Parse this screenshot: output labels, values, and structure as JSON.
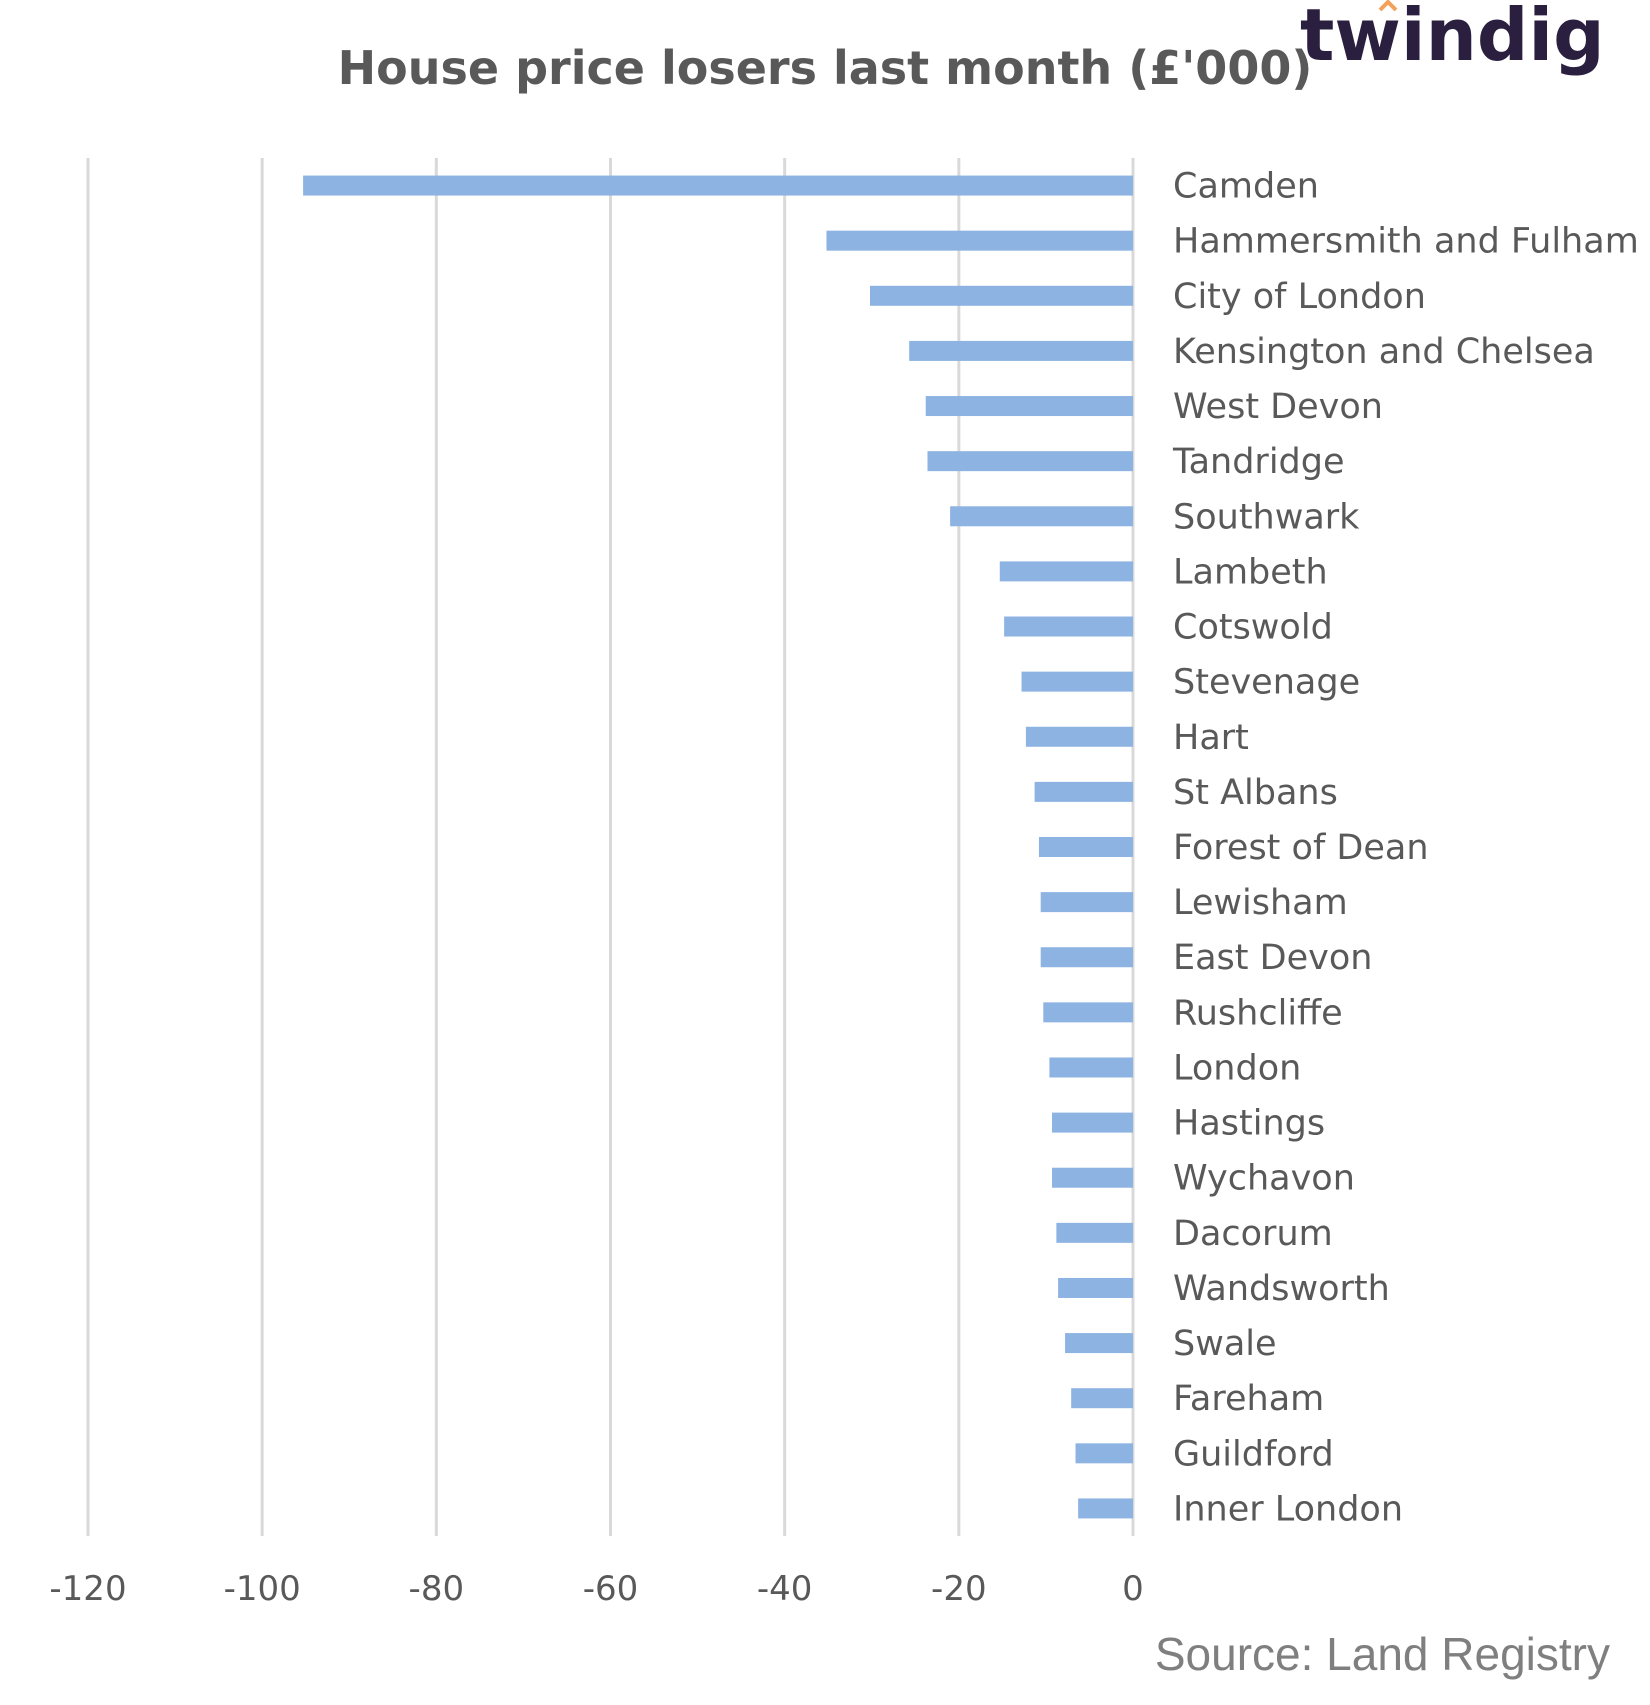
{
  "brand": {
    "logo_text": "twindig",
    "logo_color": "#2b1f3f",
    "accent_color": "#f4a259"
  },
  "source_text": "Source: Land Registry",
  "chart_data": {
    "type": "bar",
    "orientation": "horizontal",
    "title": "House price losers last month (£'000)",
    "xlabel": "",
    "ylabel": "",
    "categories": [
      "Camden",
      "Hammersmith and Fulham",
      "City of London",
      "Kensington and Chelsea",
      "West Devon",
      "Tandridge",
      "Southwark",
      "Lambeth",
      "Cotswold",
      "Stevenage",
      "Hart",
      "St Albans",
      "Forest of Dean",
      "Lewisham",
      "East Devon",
      "Rushcliffe",
      "London",
      "Hastings",
      "Wychavon",
      "Dacorum",
      "Wandsworth",
      "Swale",
      "Fareham",
      "Guildford",
      "Inner London"
    ],
    "values": [
      -95.3,
      -35.2,
      -30.2,
      -25.7,
      -23.8,
      -23.6,
      -21.0,
      -15.3,
      -14.8,
      -12.8,
      -12.3,
      -11.3,
      -10.8,
      -10.6,
      -10.6,
      -10.3,
      -9.6,
      -9.3,
      -9.3,
      -8.8,
      -8.6,
      -7.8,
      -7.1,
      -6.6,
      -6.3
    ],
    "xlim": [
      -120,
      0
    ],
    "xticks": [
      "-120",
      "-100",
      "-80",
      "-60",
      "-40",
      "-20",
      "0"
    ],
    "grid": true,
    "legend": "none",
    "bar_color": "#8db3e2",
    "grid_color": "#d9d9d9"
  }
}
